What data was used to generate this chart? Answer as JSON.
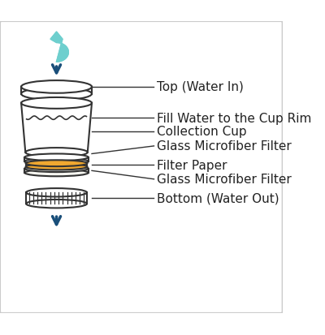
{
  "background_color": "#ffffff",
  "border_color": "#cccccc",
  "line_color": "#333333",
  "arrow_color": "#1a4f7a",
  "drop_color": "#6ecfce",
  "filter_paper_color": "#f0a830",
  "filter_white_color": "#f5f5f0",
  "labels": {
    "top": "Top (Water In)",
    "fill": "Fill Water to the Cup Rim",
    "cup": "Collection Cup",
    "gmf1": "Glass Microfiber Filter",
    "paper": "Filter Paper",
    "gmf2": "Glass Microfiber Filter",
    "bottom": "Bottom (Water Out)"
  },
  "label_fontsize": 11,
  "figsize": [
    4.0,
    4.14
  ],
  "dpi": 100
}
